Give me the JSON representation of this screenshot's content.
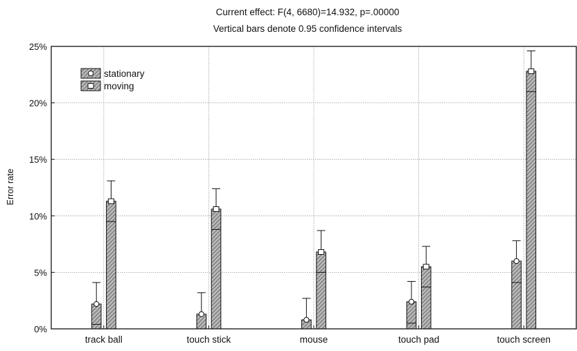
{
  "chart_data": {
    "type": "bar",
    "title": "Current effect: F(4, 6680)=14.932, p=.00000",
    "subtitle": "Vertical bars denote 0.95 confidence intervals",
    "xlabel": "",
    "ylabel": "Error rate",
    "ylim": [
      0,
      25
    ],
    "yticks": [
      "0%",
      "5%",
      "10%",
      "15%",
      "20%",
      "25%"
    ],
    "grid": true,
    "legend_position": "top-left",
    "categories": [
      "track ball",
      "touch stick",
      "mouse",
      "touch pad",
      "touch screen"
    ],
    "series": [
      {
        "name": "stationary",
        "marker": "circle",
        "values": [
          2.2,
          1.3,
          0.8,
          2.4,
          6.0
        ],
        "ci_lower": [
          0.4,
          0.0,
          0.0,
          0.5,
          4.1
        ],
        "ci_upper": [
          4.1,
          3.2,
          2.7,
          4.2,
          7.8
        ]
      },
      {
        "name": "moving",
        "marker": "square",
        "values": [
          11.3,
          10.6,
          6.8,
          5.5,
          22.8
        ],
        "ci_lower": [
          9.5,
          8.8,
          5.0,
          3.7,
          21.0
        ],
        "ci_upper": [
          13.1,
          12.4,
          8.7,
          7.3,
          24.6
        ]
      }
    ]
  }
}
